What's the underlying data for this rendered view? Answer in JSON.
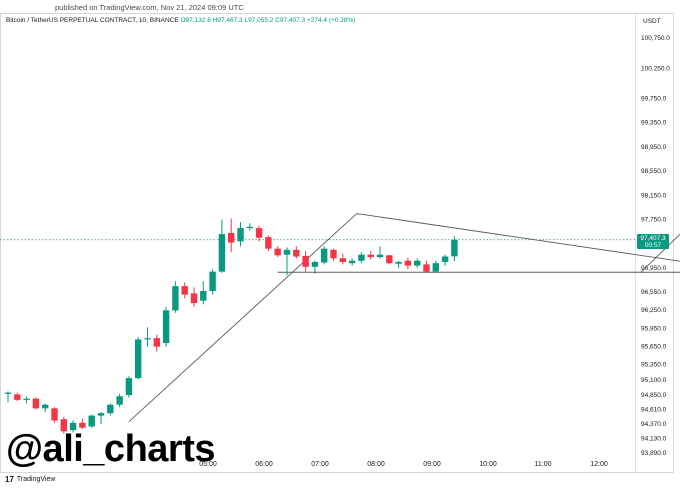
{
  "published": "published on TradingView.com, Nov 21, 2024 09:09 UTC",
  "symbol": "Bitcoin / TetherUS PERPETUAL CONTRACT, 10, BINANCE",
  "ohlc": "O97,132.8  H97,467.3  L97,055.2  C97,407.3  +274.4 (+0.28%)",
  "currency": "USDT",
  "last_price": "97,407.3",
  "countdown": "00:57",
  "watermark": "@ali_charts",
  "brand": "TradingView",
  "colors": {
    "up": "#089981",
    "down": "#f23645",
    "line": "#5a5a5a",
    "lastline": "#089981"
  },
  "chart_data": {
    "type": "candlestick",
    "title": "Bitcoin / TetherUS PERPETUAL CONTRACT, 10, BINANCE",
    "y_ticks": [
      "100,750.0",
      "100,250.0",
      "99,750.0",
      "99,350.0",
      "98,950.0",
      "98,550.0",
      "98,150.0",
      "97,750.0",
      "96,950.0",
      "96,550.0",
      "96,250.0",
      "95,950.0",
      "95,650.0",
      "95,350.0",
      "95,100.0",
      "94,850.0",
      "94,610.0",
      "94,370.0",
      "94,130.0",
      "93,890.0"
    ],
    "x_ticks": [
      "05:00",
      "06:00",
      "07:00",
      "08:00",
      "09:00",
      "10:00",
      "11:00",
      "12:00"
    ],
    "candles": [
      {
        "o": 94860,
        "h": 94900,
        "l": 94720,
        "c": 94880
      },
      {
        "o": 94850,
        "h": 94880,
        "l": 94740,
        "c": 94760
      },
      {
        "o": 94760,
        "h": 94820,
        "l": 94700,
        "c": 94780
      },
      {
        "o": 94780,
        "h": 94800,
        "l": 94600,
        "c": 94620
      },
      {
        "o": 94620,
        "h": 94700,
        "l": 94560,
        "c": 94680
      },
      {
        "o": 94620,
        "h": 94640,
        "l": 94380,
        "c": 94420
      },
      {
        "o": 94440,
        "h": 94480,
        "l": 94200,
        "c": 94240
      },
      {
        "o": 94260,
        "h": 94420,
        "l": 94220,
        "c": 94380
      },
      {
        "o": 94380,
        "h": 94450,
        "l": 94280,
        "c": 94300
      },
      {
        "o": 94320,
        "h": 94520,
        "l": 94300,
        "c": 94500
      },
      {
        "o": 94500,
        "h": 94560,
        "l": 94360,
        "c": 94540
      },
      {
        "o": 94540,
        "h": 94700,
        "l": 94500,
        "c": 94680
      },
      {
        "o": 94680,
        "h": 94860,
        "l": 94640,
        "c": 94820
      },
      {
        "o": 94840,
        "h": 95150,
        "l": 94800,
        "c": 95120
      },
      {
        "o": 95120,
        "h": 95800,
        "l": 95100,
        "c": 95760
      },
      {
        "o": 95760,
        "h": 95960,
        "l": 95640,
        "c": 95780
      },
      {
        "o": 95780,
        "h": 95840,
        "l": 95560,
        "c": 95640
      },
      {
        "o": 95700,
        "h": 96300,
        "l": 95640,
        "c": 96240
      },
      {
        "o": 96240,
        "h": 96720,
        "l": 96200,
        "c": 96640
      },
      {
        "o": 96640,
        "h": 96700,
        "l": 96440,
        "c": 96500
      },
      {
        "o": 96520,
        "h": 96620,
        "l": 96300,
        "c": 96360
      },
      {
        "o": 96400,
        "h": 96720,
        "l": 96340,
        "c": 96560
      },
      {
        "o": 96560,
        "h": 96920,
        "l": 96500,
        "c": 96880
      },
      {
        "o": 96880,
        "h": 97740,
        "l": 96860,
        "c": 97500
      },
      {
        "o": 97520,
        "h": 97760,
        "l": 97200,
        "c": 97360
      },
      {
        "o": 97380,
        "h": 97700,
        "l": 97300,
        "c": 97600
      },
      {
        "o": 97600,
        "h": 97680,
        "l": 97560,
        "c": 97620
      },
      {
        "o": 97600,
        "h": 97640,
        "l": 97380,
        "c": 97440
      },
      {
        "o": 97450,
        "h": 97480,
        "l": 97220,
        "c": 97260
      },
      {
        "o": 97260,
        "h": 97300,
        "l": 97120,
        "c": 97150
      },
      {
        "o": 97160,
        "h": 97280,
        "l": 96820,
        "c": 97240
      },
      {
        "o": 97240,
        "h": 97300,
        "l": 97100,
        "c": 97130
      },
      {
        "o": 97140,
        "h": 97220,
        "l": 96880,
        "c": 96960
      },
      {
        "o": 96960,
        "h": 97060,
        "l": 96840,
        "c": 97040
      },
      {
        "o": 97030,
        "h": 97300,
        "l": 97000,
        "c": 97260
      },
      {
        "o": 97240,
        "h": 97260,
        "l": 97060,
        "c": 97100
      },
      {
        "o": 97100,
        "h": 97180,
        "l": 97000,
        "c": 97040
      },
      {
        "o": 97020,
        "h": 97100,
        "l": 96980,
        "c": 97060
      },
      {
        "o": 97060,
        "h": 97200,
        "l": 97020,
        "c": 97160
      },
      {
        "o": 97160,
        "h": 97220,
        "l": 97080,
        "c": 97120
      },
      {
        "o": 97120,
        "h": 97300,
        "l": 97100,
        "c": 97160
      },
      {
        "o": 97150,
        "h": 97160,
        "l": 97000,
        "c": 97020
      },
      {
        "o": 97010,
        "h": 97060,
        "l": 96940,
        "c": 97040
      },
      {
        "o": 97060,
        "h": 97110,
        "l": 96920,
        "c": 96980
      },
      {
        "o": 96980,
        "h": 97100,
        "l": 96940,
        "c": 97060
      },
      {
        "o": 97000,
        "h": 97060,
        "l": 96860,
        "c": 96880
      },
      {
        "o": 96880,
        "h": 97060,
        "l": 96860,
        "c": 97020
      },
      {
        "o": 97040,
        "h": 97160,
        "l": 96980,
        "c": 97130
      },
      {
        "o": 97132.8,
        "h": 97467.3,
        "l": 97055.2,
        "c": 97407.3
      }
    ],
    "trendlines": [
      {
        "name": "descending-resistance",
        "x1": 37.5,
        "y1": 97840,
        "x2": 75,
        "y2": 96990
      },
      {
        "name": "horizontal-support",
        "x1": 29,
        "y1": 96870,
        "x2": 75,
        "y2": 96870
      },
      {
        "name": "pre-breakout-leg",
        "x1": 13,
        "y1": 94400,
        "x2": 37.5,
        "y2": 97840
      },
      {
        "name": "projected-target",
        "x1": 68,
        "y1": 96860,
        "x2": 95,
        "y2": 100910
      }
    ]
  }
}
